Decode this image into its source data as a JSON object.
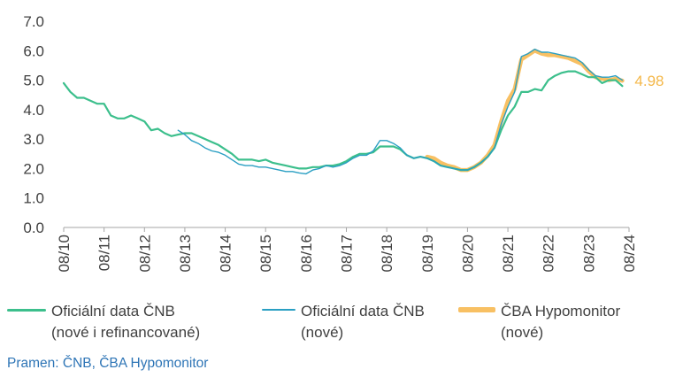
{
  "chart_data": {
    "type": "line",
    "x_tick_labels": [
      "08/10",
      "08/11",
      "08/12",
      "08/13",
      "08/14",
      "08/15",
      "08/16",
      "08/17",
      "08/18",
      "08/19",
      "08/20",
      "08/21",
      "08/22",
      "08/23",
      "08/24"
    ],
    "y_tick_labels": [
      "0.0",
      "1.0",
      "2.0",
      "3.0",
      "4.0",
      "5.0",
      "6.0",
      "7.0"
    ],
    "ylim": [
      0,
      7
    ],
    "xlim": [
      "2010-08",
      "2024-08"
    ],
    "grid": false,
    "legend_position": "bottom",
    "series": [
      {
        "name": "Oficiální data ČNB\n(nové i refinancované)",
        "color": "#3cbf8c",
        "points": [
          [
            "2010-08",
            4.9
          ],
          [
            "2010-10",
            4.6
          ],
          [
            "2010-12",
            4.4
          ],
          [
            "2011-02",
            4.4
          ],
          [
            "2011-04",
            4.3
          ],
          [
            "2011-06",
            4.2
          ],
          [
            "2011-08",
            4.2
          ],
          [
            "2011-10",
            3.8
          ],
          [
            "2011-12",
            3.7
          ],
          [
            "2012-02",
            3.7
          ],
          [
            "2012-04",
            3.8
          ],
          [
            "2012-06",
            3.7
          ],
          [
            "2012-08",
            3.6
          ],
          [
            "2012-10",
            3.3
          ],
          [
            "2012-12",
            3.35
          ],
          [
            "2013-02",
            3.2
          ],
          [
            "2013-04",
            3.1
          ],
          [
            "2013-06",
            3.15
          ],
          [
            "2013-08",
            3.2
          ],
          [
            "2013-10",
            3.2
          ],
          [
            "2013-12",
            3.1
          ],
          [
            "2014-02",
            3.0
          ],
          [
            "2014-04",
            2.9
          ],
          [
            "2014-06",
            2.8
          ],
          [
            "2014-08",
            2.65
          ],
          [
            "2014-10",
            2.5
          ],
          [
            "2014-12",
            2.3
          ],
          [
            "2015-02",
            2.3
          ],
          [
            "2015-04",
            2.3
          ],
          [
            "2015-06",
            2.25
          ],
          [
            "2015-08",
            2.3
          ],
          [
            "2015-10",
            2.2
          ],
          [
            "2015-12",
            2.15
          ],
          [
            "2016-02",
            2.1
          ],
          [
            "2016-04",
            2.05
          ],
          [
            "2016-06",
            2.0
          ],
          [
            "2016-08",
            2.0
          ],
          [
            "2016-10",
            2.05
          ],
          [
            "2016-12",
            2.05
          ],
          [
            "2017-02",
            2.1
          ],
          [
            "2017-04",
            2.1
          ],
          [
            "2017-06",
            2.15
          ],
          [
            "2017-08",
            2.25
          ],
          [
            "2017-10",
            2.4
          ],
          [
            "2017-12",
            2.5
          ],
          [
            "2018-02",
            2.5
          ],
          [
            "2018-04",
            2.55
          ],
          [
            "2018-06",
            2.75
          ],
          [
            "2018-08",
            2.75
          ],
          [
            "2018-10",
            2.75
          ],
          [
            "2018-12",
            2.65
          ],
          [
            "2019-02",
            2.45
          ],
          [
            "2019-04",
            2.35
          ],
          [
            "2019-06",
            2.4
          ],
          [
            "2019-08",
            2.35
          ],
          [
            "2019-10",
            2.25
          ],
          [
            "2019-12",
            2.1
          ],
          [
            "2020-02",
            2.05
          ],
          [
            "2020-04",
            2.0
          ],
          [
            "2020-06",
            1.95
          ],
          [
            "2020-08",
            1.95
          ],
          [
            "2020-10",
            2.05
          ],
          [
            "2020-12",
            2.2
          ],
          [
            "2021-02",
            2.4
          ],
          [
            "2021-04",
            2.7
          ],
          [
            "2021-06",
            3.3
          ],
          [
            "2021-08",
            3.8
          ],
          [
            "2021-10",
            4.1
          ],
          [
            "2021-12",
            4.6
          ],
          [
            "2022-02",
            4.6
          ],
          [
            "2022-04",
            4.7
          ],
          [
            "2022-06",
            4.65
          ],
          [
            "2022-08",
            5.0
          ],
          [
            "2022-10",
            5.15
          ],
          [
            "2022-12",
            5.25
          ],
          [
            "2023-02",
            5.3
          ],
          [
            "2023-04",
            5.3
          ],
          [
            "2023-06",
            5.2
          ],
          [
            "2023-08",
            5.1
          ],
          [
            "2023-10",
            5.1
          ],
          [
            "2023-12",
            4.9
          ],
          [
            "2024-02",
            5.0
          ],
          [
            "2024-04",
            5.0
          ],
          [
            "2024-06",
            4.8
          ]
        ]
      },
      {
        "name": "Oficiální data ČNB\n(nové)",
        "color": "#2a9fc3",
        "points": [
          [
            "2013-06",
            3.3
          ],
          [
            "2013-08",
            3.15
          ],
          [
            "2013-10",
            2.95
          ],
          [
            "2013-12",
            2.85
          ],
          [
            "2014-02",
            2.7
          ],
          [
            "2014-04",
            2.6
          ],
          [
            "2014-06",
            2.55
          ],
          [
            "2014-08",
            2.45
          ],
          [
            "2014-10",
            2.3
          ],
          [
            "2014-12",
            2.15
          ],
          [
            "2015-02",
            2.1
          ],
          [
            "2015-04",
            2.1
          ],
          [
            "2015-06",
            2.05
          ],
          [
            "2015-08",
            2.05
          ],
          [
            "2015-10",
            2.0
          ],
          [
            "2015-12",
            1.95
          ],
          [
            "2016-02",
            1.9
          ],
          [
            "2016-04",
            1.9
          ],
          [
            "2016-06",
            1.85
          ],
          [
            "2016-08",
            1.82
          ],
          [
            "2016-10",
            1.95
          ],
          [
            "2016-12",
            2.0
          ],
          [
            "2017-02",
            2.1
          ],
          [
            "2017-04",
            2.05
          ],
          [
            "2017-06",
            2.1
          ],
          [
            "2017-08",
            2.2
          ],
          [
            "2017-10",
            2.35
          ],
          [
            "2017-12",
            2.45
          ],
          [
            "2018-02",
            2.45
          ],
          [
            "2018-04",
            2.6
          ],
          [
            "2018-06",
            2.95
          ],
          [
            "2018-08",
            2.95
          ],
          [
            "2018-10",
            2.85
          ],
          [
            "2018-12",
            2.7
          ],
          [
            "2019-02",
            2.45
          ],
          [
            "2019-04",
            2.35
          ],
          [
            "2019-06",
            2.4
          ],
          [
            "2019-08",
            2.35
          ],
          [
            "2019-10",
            2.25
          ],
          [
            "2019-12",
            2.1
          ],
          [
            "2020-02",
            2.05
          ],
          [
            "2020-04",
            2.0
          ],
          [
            "2020-06",
            1.95
          ],
          [
            "2020-08",
            1.95
          ],
          [
            "2020-10",
            2.05
          ],
          [
            "2020-12",
            2.2
          ],
          [
            "2021-02",
            2.4
          ],
          [
            "2021-04",
            2.7
          ],
          [
            "2021-06",
            3.5
          ],
          [
            "2021-08",
            4.1
          ],
          [
            "2021-10",
            4.6
          ],
          [
            "2021-12",
            5.8
          ],
          [
            "2022-02",
            5.9
          ],
          [
            "2022-04",
            6.05
          ],
          [
            "2022-06",
            5.95
          ],
          [
            "2022-08",
            5.95
          ],
          [
            "2022-10",
            5.9
          ],
          [
            "2022-12",
            5.85
          ],
          [
            "2023-02",
            5.8
          ],
          [
            "2023-04",
            5.75
          ],
          [
            "2023-06",
            5.6
          ],
          [
            "2023-08",
            5.35
          ],
          [
            "2023-10",
            5.15
          ],
          [
            "2023-12",
            5.1
          ],
          [
            "2024-02",
            5.1
          ],
          [
            "2024-04",
            5.15
          ],
          [
            "2024-06",
            5.0
          ]
        ]
      },
      {
        "name": "ČBA Hypomonitor\n(nové)",
        "color": "#f8c063",
        "points": [
          [
            "2019-08",
            2.4
          ],
          [
            "2019-10",
            2.35
          ],
          [
            "2019-12",
            2.2
          ],
          [
            "2020-02",
            2.1
          ],
          [
            "2020-04",
            2.05
          ],
          [
            "2020-06",
            1.95
          ],
          [
            "2020-08",
            1.95
          ],
          [
            "2020-10",
            2.05
          ],
          [
            "2020-12",
            2.2
          ],
          [
            "2021-02",
            2.45
          ],
          [
            "2021-04",
            2.8
          ],
          [
            "2021-06",
            3.6
          ],
          [
            "2021-08",
            4.3
          ],
          [
            "2021-10",
            4.7
          ],
          [
            "2021-12",
            5.7
          ],
          [
            "2022-02",
            5.85
          ],
          [
            "2022-04",
            6.0
          ],
          [
            "2022-06",
            5.9
          ],
          [
            "2022-08",
            5.85
          ],
          [
            "2022-10",
            5.85
          ],
          [
            "2022-12",
            5.8
          ],
          [
            "2023-02",
            5.75
          ],
          [
            "2023-04",
            5.65
          ],
          [
            "2023-06",
            5.55
          ],
          [
            "2023-08",
            5.3
          ],
          [
            "2023-10",
            5.1
          ],
          [
            "2023-12",
            5.05
          ],
          [
            "2024-02",
            5.0
          ],
          [
            "2024-04",
            5.05
          ],
          [
            "2024-06",
            4.98
          ]
        ]
      }
    ],
    "annotations": [
      {
        "text": "4.98",
        "series": 2,
        "color": "#f4b84a"
      }
    ]
  },
  "legend": {
    "items": [
      {
        "label": "Oficiální data ČNB\n(nové i refinancované)",
        "color": "#3cbf8c",
        "style": "line-medium"
      },
      {
        "label": "Oficiální data ČNB\n(nové)",
        "color": "#2a9fc3",
        "style": "line-thin"
      },
      {
        "label": "ČBA Hypomonitor\n(nové)",
        "color": "#f8c063",
        "style": "line-thick"
      }
    ]
  },
  "source": "Pramen: ČNB, ČBA Hypomonitor"
}
